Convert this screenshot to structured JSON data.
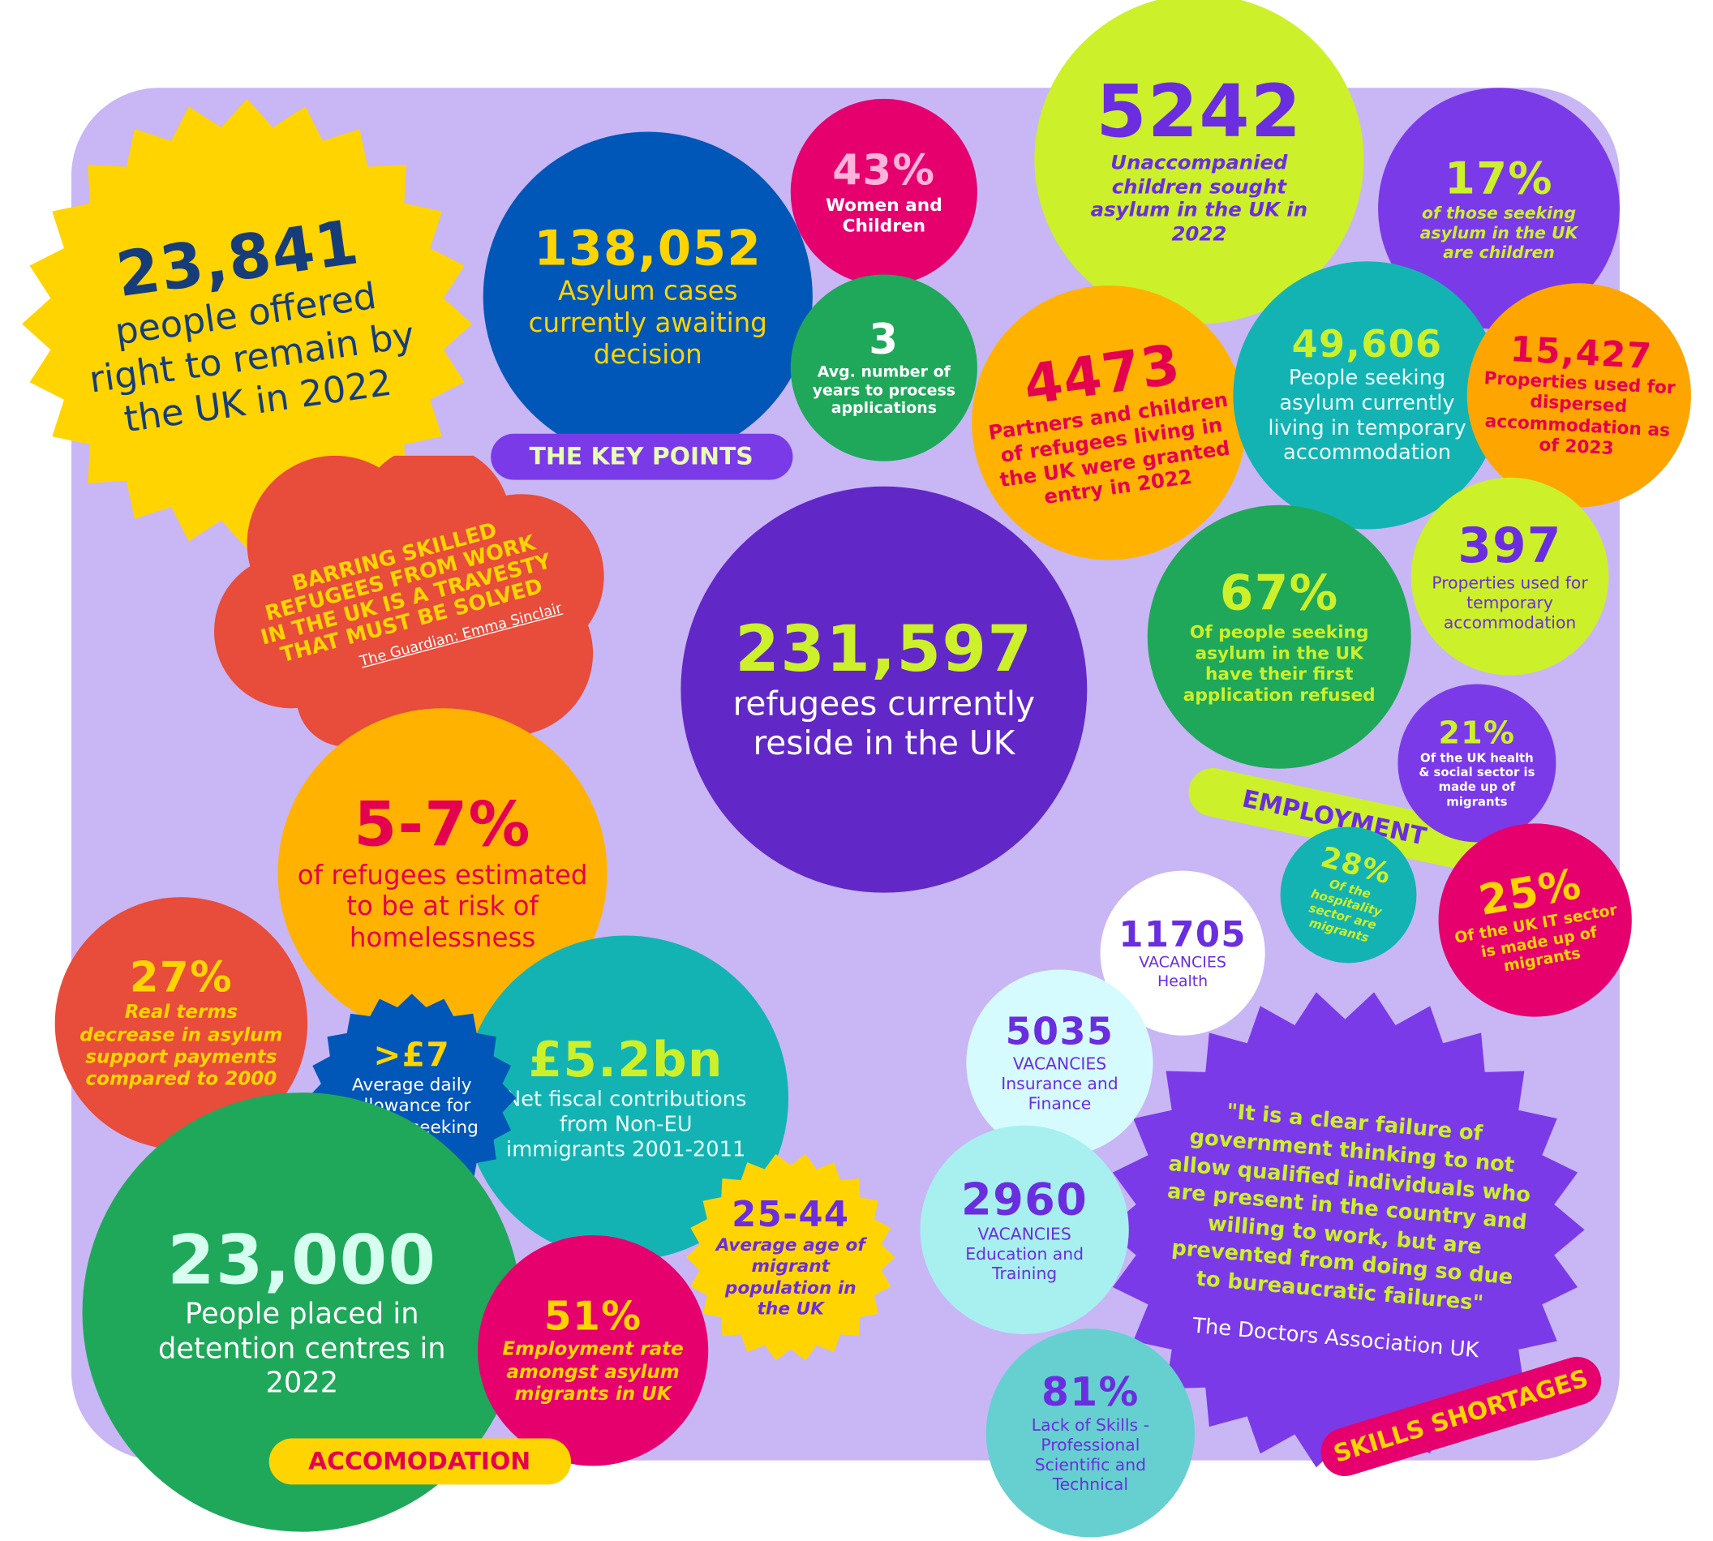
{
  "stats": [
    {
      "value": "23,841",
      "text": "people offered right to remain by the UK in 2022"
    },
    {
      "value": "138,052",
      "text": "Asylum cases currently awaiting decision"
    },
    {
      "value": "43%",
      "text": "Women and Children"
    },
    {
      "value": "3",
      "text": "Avg. number of years to process applications"
    },
    {
      "value": "5242",
      "text": "Unaccompanied children sought asylum in the UK in 2022"
    },
    {
      "value": "17%",
      "text": "of those seeking asylum in the UK are children"
    },
    {
      "value": "4473",
      "text": "Partners and children of refugees living in the UK were granted entry in 2022"
    },
    {
      "value": "49,606",
      "text": "People seeking asylum currently living in temporary accommodation"
    },
    {
      "value": "15,427",
      "text": "Properties used for dispersed accommodation as of 2023"
    },
    {
      "value": "231,597",
      "text": "refugees currently reside in the UK"
    },
    {
      "value": "67%",
      "text": "Of people seeking asylum in the UK have their first application refused"
    },
    {
      "value": "397",
      "text": "Properties used for temporary accommodation"
    },
    {
      "value": "21%",
      "text": "Of the UK health & social sector is made up of migrants"
    },
    {
      "value": "28%",
      "text": "Of the hospitality sector are migrants"
    },
    {
      "value": "25%",
      "text": "Of the UK IT sector is made up of migrants"
    },
    {
      "value": "5-7%",
      "text": "of refugees estimated to be at risk of homelessness"
    },
    {
      "value": "27%",
      "text": "Real terms decrease in asylum support payments compared to 2000"
    },
    {
      "value": ">£7",
      "text": "Average daily allowance for people seeking asylum"
    },
    {
      "value": "£5.2bn",
      "text": "Net fiscal contributions from Non-EU immigrants 2001-2011"
    },
    {
      "value": "23,000",
      "text": "People placed in detention centres in 2022"
    },
    {
      "value": "51%",
      "text": "Employment rate amongst asylum migrants in UK"
    },
    {
      "value": "25-44",
      "text": "Average age of migrant population in the UK"
    },
    {
      "value": "11705",
      "text": "VACANCIES Health"
    },
    {
      "value": "5035",
      "text": "VACANCIES Insurance and Finance"
    },
    {
      "value": "2960",
      "text": "VACANCIES Education and Training"
    },
    {
      "value": "81%",
      "text": "Lack of Skills - Professional Scientific and Technical"
    }
  ],
  "labels": [
    "THE KEY POINTS",
    "EMPLOYMENT",
    "ACCOMODATION",
    "SKILLS SHORTAGES"
  ],
  "quotes": [
    {
      "text": "BARRING SKILLED REFUGEES FROM WORK IN THE UK IS A TRAVESTY THAT MUST BE SOLVED",
      "source": "The Guardian: Emma Sinclair"
    },
    {
      "text": "\"It is a clear failure of government thinking to not allow qualified individuals who are present in the country and willing to work, but are prevented from doing so due to bureaucratic failures\"",
      "source": "The Doctors Association UK"
    }
  ]
}
